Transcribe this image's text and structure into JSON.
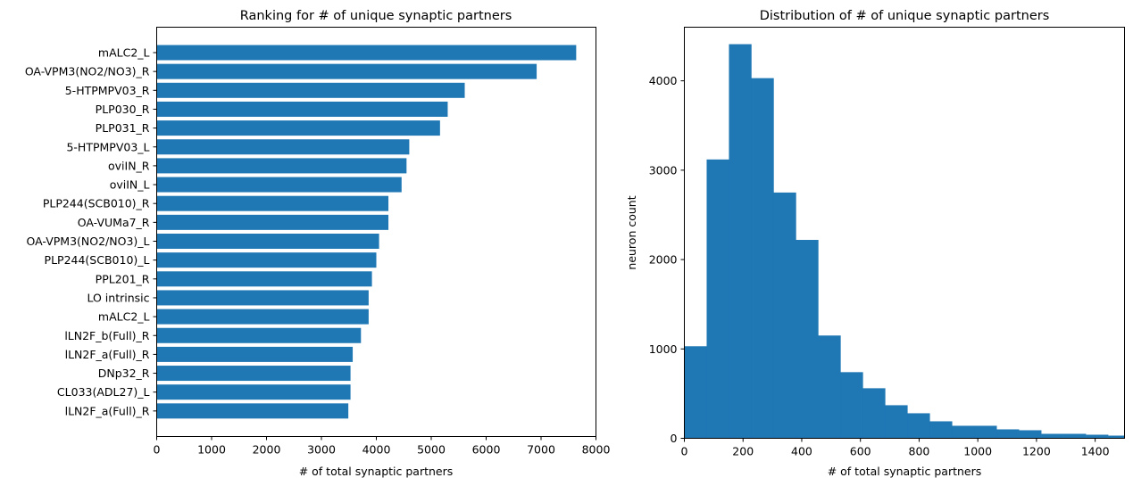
{
  "chart_data": [
    {
      "type": "bar",
      "orientation": "horizontal",
      "title": "Ranking for # of unique synaptic partners",
      "xlabel": "# of total synaptic partners",
      "ylabel": "",
      "xlim": [
        0,
        8000
      ],
      "xticks": [
        "0",
        "1000",
        "2000",
        "3000",
        "4000",
        "5000",
        "6000",
        "7000",
        "8000"
      ],
      "grid": false,
      "color": "#1f77b4",
      "categories": [
        "mALC2_L",
        "OA-VPM3(NO2/NO3)_R",
        "5-HTPMPV03_R",
        "PLP030_R",
        "PLP031_R",
        "5-HTPMPV03_L",
        "oviIN_R",
        "oviIN_L",
        "PLP244(SCB010)_R",
        "OA-VUMa7_R",
        "OA-VPM3(NO2/NO3)_L",
        "PLP244(SCB010)_L",
        "PPL201_R",
        "LO intrinsic",
        "mALC2_L",
        "lLN2F_b(Full)_R",
        "lLN2F_a(Full)_R",
        "DNp32_R",
        "CL033(ADL27)_L",
        "lLN2F_a(Full)_R"
      ],
      "values": [
        7640,
        6920,
        5610,
        5300,
        5160,
        4600,
        4550,
        4460,
        4220,
        4220,
        4050,
        4000,
        3920,
        3860,
        3860,
        3720,
        3570,
        3530,
        3530,
        3490
      ]
    },
    {
      "type": "histogram",
      "title": "Distribution of # of unique synaptic partners",
      "xlabel": "# of total synaptic partners",
      "ylabel": "neuron count",
      "xlim": [
        0,
        1500
      ],
      "ylim": [
        0,
        4600
      ],
      "xticks": [
        "0",
        "200",
        "400",
        "600",
        "800",
        "1000",
        "1200",
        "1400"
      ],
      "yticks": [
        "0",
        "1000",
        "2000",
        "3000",
        "4000"
      ],
      "grid": false,
      "color": "#1f77b4",
      "bin_edges": [
        0,
        76,
        152,
        228,
        304,
        380,
        456,
        532,
        608,
        684,
        760,
        836,
        912,
        988,
        1064,
        1140,
        1216,
        1292,
        1368,
        1444,
        1520
      ],
      "counts": [
        1030,
        3120,
        4410,
        4030,
        2750,
        2220,
        1150,
        740,
        560,
        370,
        280,
        190,
        140,
        140,
        100,
        90,
        50,
        50,
        40,
        30
      ]
    }
  ]
}
